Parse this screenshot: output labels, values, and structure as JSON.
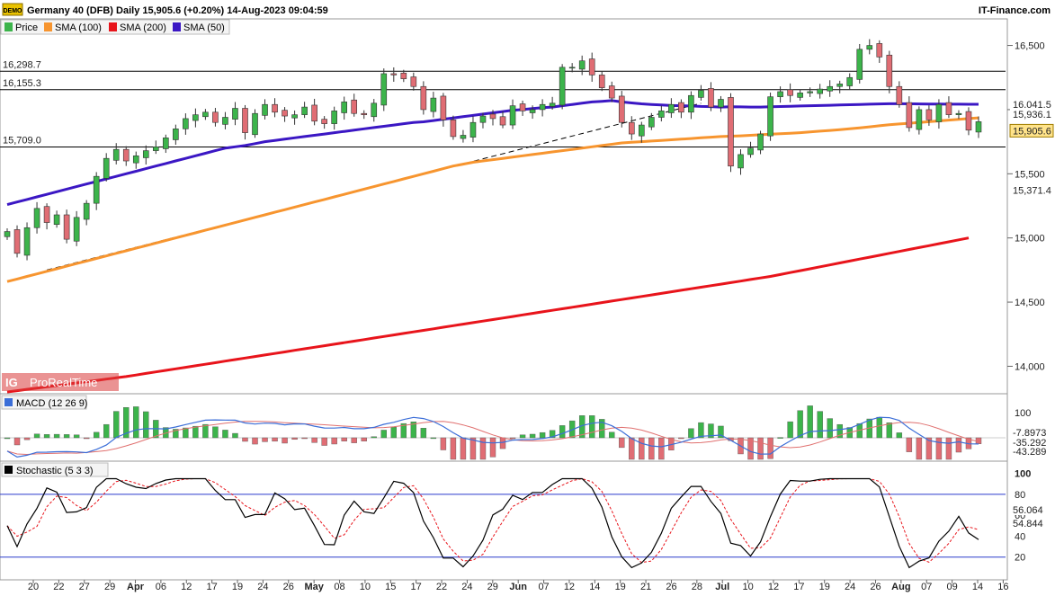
{
  "header": {
    "title": "Germany 40 (DFB) Daily 15,905.6 (+0.20%) 14-Aug-2023 09:04:59",
    "brand": "IT-Finance.com",
    "demo_badge": "DEMO",
    "legend": [
      {
        "label": "Price",
        "color": "#3cb44b"
      },
      {
        "label": "SMA (100)",
        "color": "#f7952f"
      },
      {
        "label": "SMA (200)",
        "color": "#e8141b"
      },
      {
        "label": "SMA (50)",
        "color": "#3b17c4"
      }
    ]
  },
  "watermark": {
    "ig": "IG",
    "text": "ProRealTime"
  },
  "colors": {
    "up": "#3cb44b",
    "down": "#e06d74",
    "sma100": "#f7952f",
    "sma200": "#e8141b",
    "sma50": "#3b17c4",
    "macd_line": "#3b6ed8",
    "signal_line": "#e0706f",
    "stoch_k": "#000000",
    "stoch_d": "#e8141b",
    "level_line": "#000000",
    "stoch_bounds": "#2a3bcc"
  },
  "chart_data": [
    {
      "type": "candlestick",
      "title": "Germany 40 (DFB) Daily",
      "y_ticks": [
        14000,
        14500,
        15000,
        15500,
        16000,
        16500
      ],
      "ylim": [
        13800,
        16700
      ],
      "x_ticks": [
        "20",
        "22",
        "27",
        "29",
        "Apr",
        "06",
        "12",
        "17",
        "19",
        "24",
        "26",
        "May",
        "08",
        "10",
        "15",
        "17",
        "22",
        "24",
        "29",
        "Jun",
        "07",
        "12",
        "14",
        "19",
        "21",
        "26",
        "28",
        "Jul",
        "10",
        "12",
        "17",
        "19",
        "24",
        "26",
        "Aug",
        "07",
        "09",
        "14",
        "16"
      ],
      "horizontal_levels": [
        {
          "label": "16,298.7",
          "value": 16298.7
        },
        {
          "label": "16,155.3",
          "value": 16155.3
        },
        {
          "label": "15,709.0",
          "value": 15709.0
        }
      ],
      "price_tags": [
        {
          "label": "16,041.5",
          "value": 16041.5,
          "series": "SMA (50)"
        },
        {
          "label": "15,936.1",
          "value": 15936.1,
          "series": "SMA (100)"
        },
        {
          "label": "15,905.6",
          "value": 15905.6,
          "series": "Price"
        },
        {
          "label": "15,371.4",
          "value": 15371.4,
          "series": "SMA (200)"
        }
      ],
      "closes": [
        15050,
        14880,
        15080,
        15230,
        15120,
        15180,
        14990,
        15160,
        15270,
        15480,
        15620,
        15690,
        15600,
        15640,
        15680,
        15710,
        15780,
        15850,
        15930,
        15960,
        15980,
        15900,
        15940,
        16010,
        15820,
        15970,
        16040,
        15980,
        15950,
        15960,
        16020,
        15910,
        15890,
        15990,
        16060,
        15970,
        15960,
        16050,
        16280,
        16270,
        16240,
        16180,
        16000,
        16090,
        15920,
        15790,
        15800,
        15900,
        15950,
        15930,
        15880,
        16030,
        15990,
        16000,
        16040,
        16050,
        16330,
        16330,
        16380,
        16270,
        16170,
        16090,
        15900,
        15810,
        15880,
        15940,
        15990,
        16040,
        15980,
        16110,
        16150,
        16020,
        16080,
        15560,
        15650,
        15700,
        15810,
        16100,
        16140,
        16110,
        16130,
        16140,
        16160,
        16180,
        16200,
        16250,
        16470,
        16500,
        16410,
        16180,
        16040,
        15860,
        16000,
        15920,
        16040,
        15960,
        15970,
        15840,
        15906
      ],
      "sma50": [
        15260,
        15280,
        15300,
        15320,
        15340,
        15360,
        15380,
        15400,
        15420,
        15440,
        15460,
        15480,
        15500,
        15520,
        15540,
        15560,
        15580,
        15600,
        15620,
        15640,
        15660,
        15680,
        15700,
        15710,
        15720,
        15735,
        15750,
        15760,
        15770,
        15780,
        15790,
        15800,
        15810,
        15820,
        15830,
        15840,
        15850,
        15860,
        15870,
        15880,
        15890,
        15900,
        15905,
        15915,
        15925,
        15935,
        15945,
        15955,
        15965,
        15975,
        15985,
        15995,
        16000,
        16008,
        16015,
        16020,
        16030,
        16040,
        16050,
        16060,
        16065,
        16070,
        16060,
        16052,
        16045,
        16040,
        16036,
        16032,
        16030,
        16028,
        16025,
        16023,
        16020,
        16022,
        16021,
        16020,
        16020,
        16022,
        16024,
        16026,
        16028,
        16030,
        16032,
        16034,
        16036,
        16038,
        16040,
        16042,
        16044,
        16046,
        16046,
        16045,
        16044,
        16043,
        16043,
        16042,
        16042,
        16041.5,
        16041.5
      ],
      "sma100": [
        14660,
        14680,
        14700,
        14720,
        14740,
        14760,
        14780,
        14800,
        14820,
        14840,
        14860,
        14880,
        14900,
        14920,
        14940,
        14960,
        14980,
        15000,
        15020,
        15040,
        15060,
        15080,
        15100,
        15120,
        15140,
        15160,
        15180,
        15200,
        15220,
        15240,
        15260,
        15280,
        15300,
        15320,
        15340,
        15360,
        15380,
        15400,
        15420,
        15440,
        15460,
        15480,
        15500,
        15520,
        15540,
        15560,
        15575,
        15590,
        15600,
        15610,
        15620,
        15630,
        15640,
        15650,
        15660,
        15670,
        15680,
        15690,
        15700,
        15710,
        15720,
        15730,
        15740,
        15745,
        15750,
        15755,
        15760,
        15765,
        15770,
        15775,
        15780,
        15785,
        15790,
        15793,
        15796,
        15800,
        15804,
        15808,
        15812,
        15816,
        15820,
        15826,
        15832,
        15838,
        15844,
        15850,
        15858,
        15866,
        15874,
        15882,
        15888,
        15894,
        15900,
        15906,
        15912,
        15918,
        15924,
        15930,
        15936
      ],
      "sma200": [
        13800,
        13810,
        13820,
        13830,
        13840,
        13850,
        13860,
        13870,
        13880,
        13890,
        13900,
        13910,
        13920,
        13932,
        13944,
        13956,
        13968,
        13980,
        13992,
        14004,
        14016,
        14028,
        14040,
        14052,
        14064,
        14076,
        14088,
        14100,
        14112,
        14124,
        14136,
        14148,
        14160,
        14172,
        14184,
        14196,
        14208,
        14220,
        14232,
        14244,
        14256,
        14268,
        14280,
        14292,
        14304,
        14316,
        14328,
        14340,
        14352,
        14364,
        14376,
        14388,
        14400,
        14412,
        14424,
        14436,
        14448,
        14460,
        14472,
        14484,
        14496,
        14508,
        14520,
        14532,
        14544,
        14556,
        14568,
        14580,
        14592,
        14604,
        14616,
        14628,
        14640,
        14652,
        14664,
        14676,
        14688,
        14700,
        14715,
        14730,
        14745,
        14760,
        14775,
        14790,
        14805,
        14820,
        14835,
        14850,
        14865,
        14880,
        14895,
        14910,
        14925,
        14940,
        14955,
        14970,
        14985,
        15000,
        15371.4
      ]
    },
    {
      "type": "bar",
      "title": "MACD (12 26 9)",
      "y_ticks": [
        100
      ],
      "labels": [
        "-7.8973",
        "-35.292",
        "-43.289"
      ],
      "note": "histogram with MACD and signal lines"
    },
    {
      "type": "line",
      "title": "Stochastic (5 3 3)",
      "y_ticks": [
        20,
        40,
        60,
        80,
        100
      ],
      "ylim": [
        0,
        110
      ],
      "labels": [
        "56.064",
        "54.844"
      ],
      "bounds": [
        20,
        80
      ]
    }
  ]
}
